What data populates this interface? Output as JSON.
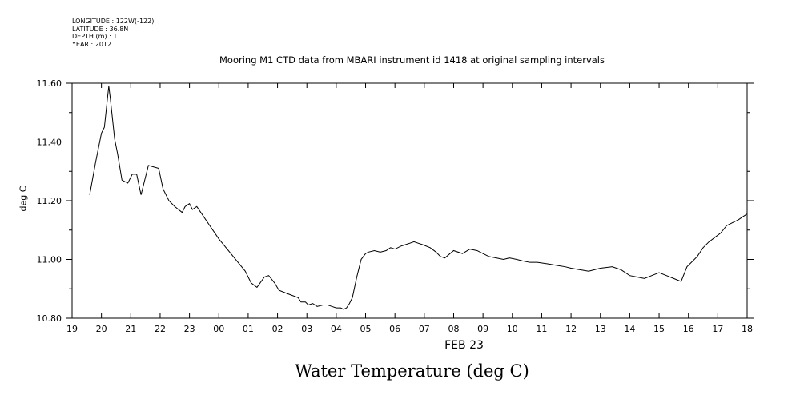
{
  "metadata": {
    "longitude": "LONGITUDE : 122W(-122)",
    "latitude": "LATITUDE : 36.8N",
    "depth": "DEPTH (m) : 1",
    "year": "YEAR : 2012"
  },
  "footer_title": "Water Temperature (deg C)",
  "chart_data": {
    "type": "line",
    "title": "Mooring M1 CTD data from MBARI instrument id 1418 at original sampling intervals",
    "ylabel": "deg C",
    "xlabel": "FEB 23",
    "xlim": [
      19,
      42
    ],
    "ylim": [
      10.8,
      11.6
    ],
    "x_tick_values": [
      19,
      20,
      21,
      22,
      23,
      24,
      25,
      26,
      27,
      28,
      29,
      30,
      31,
      32,
      33,
      34,
      35,
      36,
      37,
      38,
      39,
      40,
      41,
      42
    ],
    "x_tick_labels": [
      "19",
      "20",
      "21",
      "22",
      "23",
      "00",
      "01",
      "02",
      "03",
      "04",
      "05",
      "06",
      "07",
      "08",
      "09",
      "10",
      "11",
      "12",
      "13",
      "14",
      "15",
      "16",
      "17",
      "18"
    ],
    "y_tick_values": [
      10.8,
      11.0,
      11.2,
      11.4,
      11.6
    ],
    "y_tick_labels": [
      "10.80",
      "11.00",
      "11.20",
      "11.40",
      "11.60"
    ],
    "y_minor_ticks": [
      10.9,
      11.1,
      11.3,
      11.5
    ],
    "series": [
      {
        "x": [
          19.6,
          19.8,
          20.0,
          20.1,
          20.25,
          20.3,
          20.45,
          20.55,
          20.7,
          20.9,
          21.05,
          21.2,
          21.35,
          21.6,
          21.95,
          22.1,
          22.3,
          22.5,
          22.75,
          22.85,
          23.0,
          23.1,
          23.25,
          24.0,
          24.9,
          25.1,
          25.3,
          25.55,
          25.7,
          25.9,
          26.05,
          26.3,
          26.7,
          26.8,
          26.95,
          27.05,
          27.2,
          27.35,
          27.55,
          27.7,
          27.85,
          28.0,
          28.15,
          28.25,
          28.35,
          28.45,
          28.55,
          28.7,
          28.85,
          29.0,
          29.1,
          29.3,
          29.5,
          29.7,
          29.85,
          30.0,
          30.2,
          30.35,
          30.5,
          30.65,
          30.8,
          30.95,
          31.2,
          31.4,
          31.55,
          31.7,
          32.0,
          32.3,
          32.55,
          32.8,
          33.0,
          33.2,
          33.45,
          33.7,
          33.9,
          34.15,
          34.35,
          34.6,
          34.85,
          35.2,
          35.5,
          35.8,
          36.0,
          36.3,
          36.6,
          37.0,
          37.4,
          37.7,
          38.0,
          38.25,
          38.5,
          38.75,
          39.0,
          39.25,
          39.5,
          39.75,
          39.95,
          40.15,
          40.3,
          40.5,
          40.7,
          40.9,
          41.1,
          41.3,
          41.5,
          41.7,
          41.85,
          42.0
        ],
        "values": [
          11.22,
          11.33,
          11.43,
          11.45,
          11.59,
          11.55,
          11.41,
          11.36,
          11.27,
          11.26,
          11.29,
          11.29,
          11.22,
          11.32,
          11.31,
          11.24,
          11.2,
          11.18,
          11.16,
          11.18,
          11.19,
          11.17,
          11.18,
          11.07,
          10.96,
          10.92,
          10.905,
          10.94,
          10.945,
          10.92,
          10.895,
          10.885,
          10.87,
          10.855,
          10.855,
          10.845,
          10.85,
          10.84,
          10.845,
          10.845,
          10.84,
          10.835,
          10.835,
          10.83,
          10.835,
          10.85,
          10.87,
          10.94,
          11.0,
          11.02,
          11.025,
          11.03,
          11.025,
          11.03,
          11.04,
          11.035,
          11.045,
          11.05,
          11.055,
          11.06,
          11.055,
          11.05,
          11.04,
          11.025,
          11.01,
          11.005,
          11.03,
          11.02,
          11.035,
          11.03,
          11.02,
          11.01,
          11.005,
          11.0,
          11.005,
          11.0,
          10.995,
          10.99,
          10.99,
          10.985,
          10.98,
          10.975,
          10.97,
          10.965,
          10.96,
          10.97,
          10.975,
          10.965,
          10.945,
          10.94,
          10.935,
          10.945,
          10.955,
          10.945,
          10.935,
          10.925,
          10.975,
          10.995,
          11.01,
          11.04,
          11.06,
          11.075,
          11.09,
          11.115,
          11.125,
          11.135,
          11.145,
          11.155
        ]
      }
    ]
  }
}
